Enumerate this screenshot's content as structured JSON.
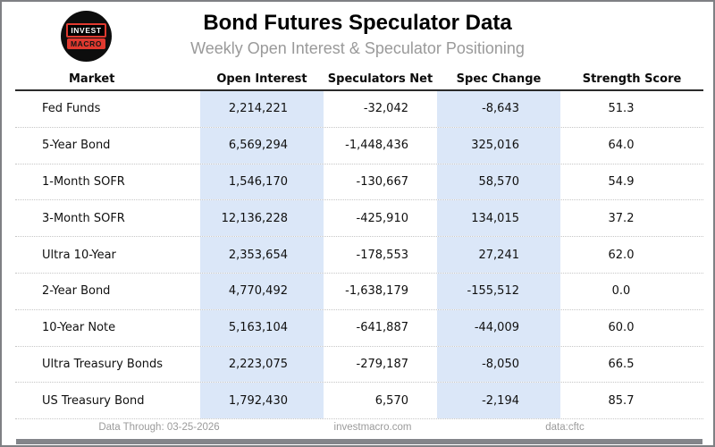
{
  "header": {
    "title": "Bond Futures Speculator Data",
    "subtitle": "Weekly Open Interest & Speculator Positioning",
    "logo": {
      "line1": "INVEST",
      "line2": "MACRO"
    }
  },
  "table": {
    "columns": [
      "Market",
      "Open Interest",
      "Speculators Net",
      "Spec Change",
      "Strength Score"
    ],
    "rows": [
      {
        "market": "Fed Funds",
        "open_interest": "2,214,221",
        "speculators_net": "-32,042",
        "spec_change": "-8,643",
        "strength_score": "51.3"
      },
      {
        "market": "5-Year Bond",
        "open_interest": "6,569,294",
        "speculators_net": "-1,448,436",
        "spec_change": "325,016",
        "strength_score": "64.0"
      },
      {
        "market": "1-Month SOFR",
        "open_interest": "1,546,170",
        "speculators_net": "-130,667",
        "spec_change": "58,570",
        "strength_score": "54.9"
      },
      {
        "market": "3-Month SOFR",
        "open_interest": "12,136,228",
        "speculators_net": "-425,910",
        "spec_change": "134,015",
        "strength_score": "37.2"
      },
      {
        "market": "Ultra 10-Year",
        "open_interest": "2,353,654",
        "speculators_net": "-178,553",
        "spec_change": "27,241",
        "strength_score": "62.0"
      },
      {
        "market": "2-Year Bond",
        "open_interest": "4,770,492",
        "speculators_net": "-1,638,179",
        "spec_change": "-155,512",
        "strength_score": "0.0"
      },
      {
        "market": "10-Year Note",
        "open_interest": "5,163,104",
        "speculators_net": "-641,887",
        "spec_change": "-44,009",
        "strength_score": "60.0"
      },
      {
        "market": "Ultra Treasury Bonds",
        "open_interest": "2,223,075",
        "speculators_net": "-279,187",
        "spec_change": "-8,050",
        "strength_score": "66.5"
      },
      {
        "market": "US Treasury Bond",
        "open_interest": "1,792,430",
        "speculators_net": "6,570",
        "spec_change": "-2,194",
        "strength_score": "85.7"
      }
    ]
  },
  "footer": {
    "data_through": "Data Through: 03-25-2026",
    "website": "investmacro.com",
    "source": "data:cftc"
  },
  "colors": {
    "column_highlight": "#dbe7f8",
    "logo_red": "#e0392f",
    "frame_gray": "#7f8084",
    "subtitle_gray": "#9a9a9a"
  },
  "chart_data": {
    "type": "table",
    "title": "Bond Futures Speculator Data",
    "subtitle": "Weekly Open Interest & Speculator Positioning",
    "columns": [
      "Market",
      "Open Interest",
      "Speculators Net",
      "Spec Change",
      "Strength Score"
    ],
    "rows": [
      [
        "Fed Funds",
        2214221,
        -32042,
        -8643,
        51.3
      ],
      [
        "5-Year Bond",
        6569294,
        -1448436,
        325016,
        64.0
      ],
      [
        "1-Month SOFR",
        1546170,
        -130667,
        58570,
        54.9
      ],
      [
        "3-Month SOFR",
        12136228,
        -425910,
        134015,
        37.2
      ],
      [
        "Ultra 10-Year",
        2353654,
        -178553,
        27241,
        62.0
      ],
      [
        "2-Year Bond",
        4770492,
        -1638179,
        -155512,
        0.0
      ],
      [
        "10-Year Note",
        5163104,
        -641887,
        -44009,
        60.0
      ],
      [
        "Ultra Treasury Bonds",
        2223075,
        -279187,
        -8050,
        66.5
      ],
      [
        "US Treasury Bond",
        1792430,
        6570,
        -2194,
        85.7
      ]
    ],
    "highlighted_columns": [
      "Open Interest",
      "Spec Change"
    ],
    "footer": [
      "Data Through: 03-25-2026",
      "investmacro.com",
      "data:cftc"
    ]
  }
}
